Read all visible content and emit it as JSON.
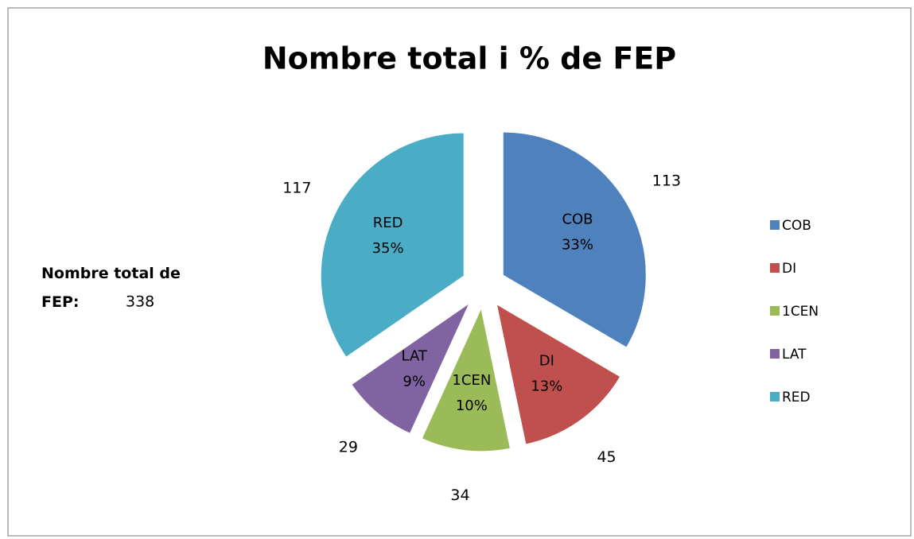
{
  "chart_data": {
    "type": "pie",
    "title": "Nombre total i % de FEP",
    "categories": [
      "COB",
      "DI",
      "1CEN",
      "LAT",
      "RED"
    ],
    "values": [
      113,
      45,
      34,
      29,
      117
    ],
    "percent_labels": [
      "33%",
      "13%",
      "10%",
      "9%",
      "35%"
    ],
    "colors": [
      "#4f81bd",
      "#c0504d",
      "#9bbb59",
      "#8064a2",
      "#4bacc6"
    ],
    "legend": "right",
    "annotation": {
      "label": "Nombre total de FEP:",
      "value": 338
    }
  }
}
